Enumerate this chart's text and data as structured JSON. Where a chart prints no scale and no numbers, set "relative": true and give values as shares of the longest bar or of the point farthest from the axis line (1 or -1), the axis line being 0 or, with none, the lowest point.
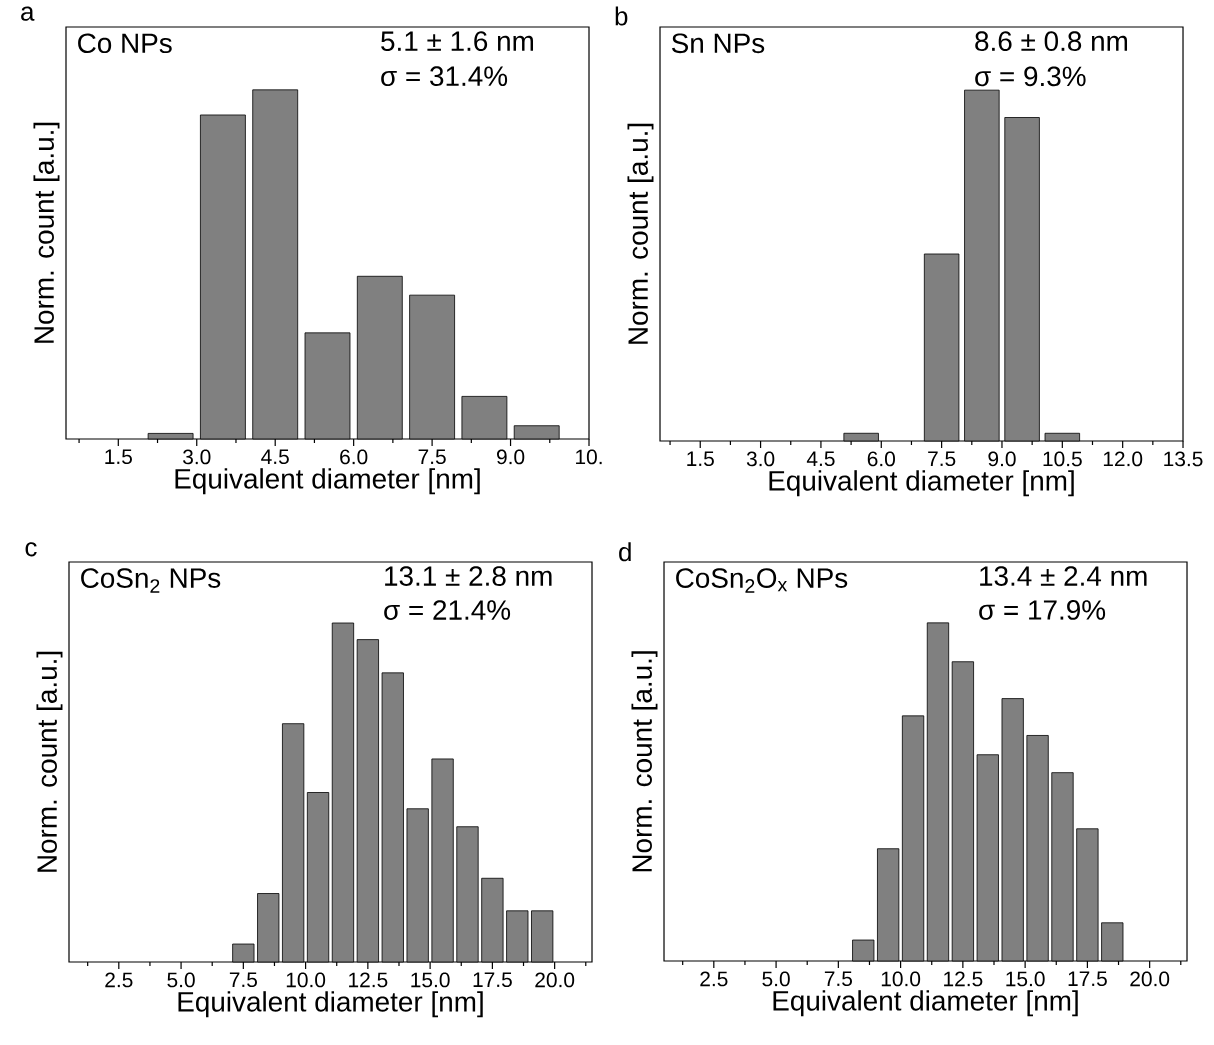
{
  "chart_data": [
    {
      "type": "bar",
      "title": "Co NPs",
      "xlabel": "Equivalent diameter [nm]",
      "ylabel": "Norm. count [a.u.]",
      "relative": true,
      "color": "#808080",
      "x": [
        2.5,
        3.5,
        4.5,
        5.5,
        6.5,
        7.5,
        8.5,
        9.5
      ],
      "values": [
        0.016,
        0.928,
        1,
        0.304,
        0.466,
        0.412,
        0.122,
        0.038
      ],
      "xlim": [
        0.5,
        10.5
      ],
      "xticks": [
        1.5,
        {
          "value": 3,
          "label": "3.0"
        },
        4.5,
        {
          "value": 6,
          "label": "6.0"
        },
        7.5,
        {
          "value": 9,
          "label": "9.0"
        },
        {
          "value": 10.5,
          "label": "10."
        }
      ],
      "annotations": [
        "a",
        "5.1 ± 1.6 nm",
        "σ = 31.4%"
      ]
    },
    {
      "type": "bar",
      "title": "Sn NPs",
      "xlabel": "Equivalent diameter [nm]",
      "ylabel": "Norm. count [a.u.]",
      "relative": true,
      "color": "#808080",
      "x": [
        5.5,
        7.5,
        8.5,
        9.5,
        10.5
      ],
      "values": [
        0.022,
        0.533,
        1,
        0.922,
        0.022
      ],
      "xlim": [
        0.5,
        13.5
      ],
      "xticks": [
        1.5,
        {
          "value": 3,
          "label": "3.0"
        },
        4.5,
        {
          "value": 6,
          "label": "6.0"
        },
        7.5,
        {
          "value": 9,
          "label": "9.0"
        },
        10.5,
        {
          "value": 12,
          "label": "12.0"
        },
        13.5
      ],
      "annotations": [
        "b",
        "8.6 ± 0.8 nm",
        "σ = 9.3%"
      ]
    },
    {
      "type": "bar",
      "title": "CoSn$_{2}$ NPs",
      "xlabel": "Equivalent diameter [nm]",
      "ylabel": "Norm. count [a.u.]",
      "relative": true,
      "color": "#808080",
      "x": [
        7.5,
        8.5,
        9.5,
        10.5,
        11.5,
        12.5,
        13.5,
        14.5,
        15.5,
        16.5,
        17.5,
        18.5,
        19.5
      ],
      "values": [
        0.053,
        0.202,
        0.703,
        0.5,
        1,
        0.951,
        0.853,
        0.452,
        0.599,
        0.399,
        0.247,
        0.151,
        0.151
      ],
      "xlim": [
        0.5,
        21.5
      ],
      "xticks": [
        2.5,
        {
          "value": 5,
          "label": "5.0"
        },
        7.5,
        {
          "value": 10,
          "label": "10.0"
        },
        12.5,
        {
          "value": 15,
          "label": "15.0"
        },
        17.5,
        {
          "value": 20,
          "label": "20.0"
        }
      ],
      "annotations": [
        "c",
        "13.1 ± 2.8 nm",
        "σ = 21.4%"
      ]
    },
    {
      "type": "bar",
      "title": "CoSn$_{2}$O$_{x}$ NPs",
      "xlabel": "Equivalent diameter [nm]",
      "ylabel": "Norm. count [a.u.]",
      "relative": true,
      "color": "#808080",
      "x": [
        8.5,
        9.5,
        10.5,
        11.5,
        12.5,
        13.5,
        14.5,
        15.5,
        16.5,
        17.5,
        18.5
      ],
      "values": [
        0.062,
        0.332,
        0.725,
        1,
        0.885,
        0.61,
        0.776,
        0.667,
        0.557,
        0.391,
        0.113
      ],
      "xlim": [
        0.5,
        21.5
      ],
      "xticks": [
        2.5,
        {
          "value": 5,
          "label": "5.0"
        },
        7.5,
        {
          "value": 10,
          "label": "10.0"
        },
        12.5,
        {
          "value": 15,
          "label": "15.0"
        },
        17.5,
        {
          "value": 20,
          "label": "20.0"
        }
      ],
      "annotations": [
        "d",
        "13.4 ± 2.4 nm",
        "σ = 17.9%"
      ]
    }
  ]
}
